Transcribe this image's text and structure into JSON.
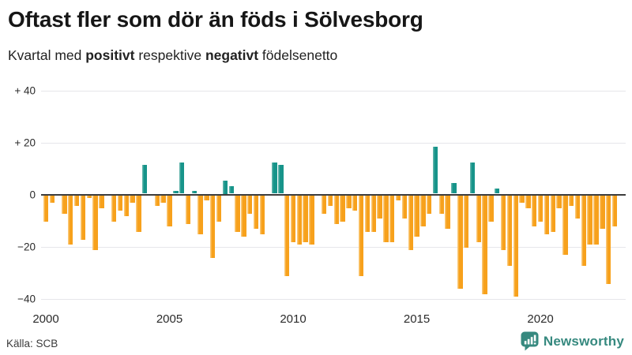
{
  "header": {
    "title": "Oftast fler som dör än föds i Sölvesborg",
    "subtitle": {
      "prefix": "Kvartal med ",
      "positive_word": "positivt",
      "middle": " respektive ",
      "negative_word": "negativt",
      "suffix": " födelsenetto"
    }
  },
  "chart_data": {
    "type": "bar",
    "title": "Oftast fler som dör än föds i Sölvesborg",
    "subtitle": "Kvartal med positivt respektive negativt födelsenetto",
    "unit": "födelsenetto per kvartal",
    "frequency": "quarterly",
    "start": "2000Q1",
    "end": "2023Q1",
    "quarters": [
      "2000Q1",
      "2000Q2",
      "2000Q3",
      "2000Q4",
      "2001Q1",
      "2001Q2",
      "2001Q3",
      "2001Q4",
      "2002Q1",
      "2002Q2",
      "2002Q3",
      "2002Q4",
      "2003Q1",
      "2003Q2",
      "2003Q3",
      "2003Q4",
      "2004Q1",
      "2004Q2",
      "2004Q3",
      "2004Q4",
      "2005Q1",
      "2005Q2",
      "2005Q3",
      "2005Q4",
      "2006Q1",
      "2006Q2",
      "2006Q3",
      "2006Q4",
      "2007Q1",
      "2007Q2",
      "2007Q3",
      "2007Q4",
      "2008Q1",
      "2008Q2",
      "2008Q3",
      "2008Q4",
      "2009Q1",
      "2009Q2",
      "2009Q3",
      "2009Q4",
      "2010Q1",
      "2010Q2",
      "2010Q3",
      "2010Q4",
      "2011Q1",
      "2011Q2",
      "2011Q3",
      "2011Q4",
      "2012Q1",
      "2012Q2",
      "2012Q3",
      "2012Q4",
      "2013Q1",
      "2013Q2",
      "2013Q3",
      "2013Q4",
      "2014Q1",
      "2014Q2",
      "2014Q3",
      "2014Q4",
      "2015Q1",
      "2015Q2",
      "2015Q3",
      "2015Q4",
      "2016Q1",
      "2016Q2",
      "2016Q3",
      "2016Q4",
      "2017Q1",
      "2017Q2",
      "2017Q3",
      "2017Q4",
      "2018Q1",
      "2018Q2",
      "2018Q3",
      "2018Q4",
      "2019Q1",
      "2019Q2",
      "2019Q3",
      "2019Q4",
      "2020Q1",
      "2020Q2",
      "2020Q3",
      "2020Q4",
      "2021Q1",
      "2021Q2",
      "2021Q3",
      "2021Q4",
      "2022Q1",
      "2022Q2",
      "2022Q3",
      "2022Q4",
      "2023Q1"
    ],
    "values": [
      -10,
      -3,
      0,
      -7,
      -19,
      -4,
      -17,
      -1,
      -21,
      -5,
      0,
      -10,
      -6,
      -8,
      -3,
      -14,
      11,
      0,
      -4,
      -3,
      -12,
      1,
      12,
      -11,
      1,
      -15,
      -2,
      -24,
      -10,
      5,
      3,
      -14,
      -16,
      -7,
      -13,
      -15,
      0,
      12,
      11,
      -31,
      -18,
      -19,
      -18,
      -19,
      0,
      -7,
      -4,
      -11,
      -10,
      -5,
      -6,
      -31,
      -14,
      -14,
      -9,
      -18,
      -18,
      -2,
      -9,
      -21,
      -16,
      -12,
      -7,
      18,
      -7,
      -13,
      4,
      -36,
      -20,
      12,
      -18,
      -38,
      -10,
      2,
      -21,
      -27,
      -39,
      -3,
      -5,
      -12,
      -10,
      -15,
      -14,
      -5,
      -23,
      -4,
      -9,
      -27,
      -19,
      -19,
      -13,
      -34,
      -12
    ],
    "colors": {
      "positive": "#17948a",
      "negative": "#f7a11c"
    },
    "yticks": [
      {
        "label": "+ 40",
        "value": 40
      },
      {
        "label": "+ 20",
        "value": 20
      },
      {
        "label": "0",
        "value": 0
      },
      {
        "label": "−20",
        "value": -20
      },
      {
        "label": "−40",
        "value": -40
      }
    ],
    "xticks": [
      {
        "label": "2000",
        "year": 2000
      },
      {
        "label": "2005",
        "year": 2005
      },
      {
        "label": "2010",
        "year": 2010
      },
      {
        "label": "2015",
        "year": 2015
      },
      {
        "label": "2020",
        "year": 2020
      }
    ],
    "ylim": [
      -44,
      44
    ],
    "grid": "horizontal",
    "legend": "none"
  },
  "footer": {
    "source": "Källa: SCB",
    "brand": "Newsworthy"
  }
}
